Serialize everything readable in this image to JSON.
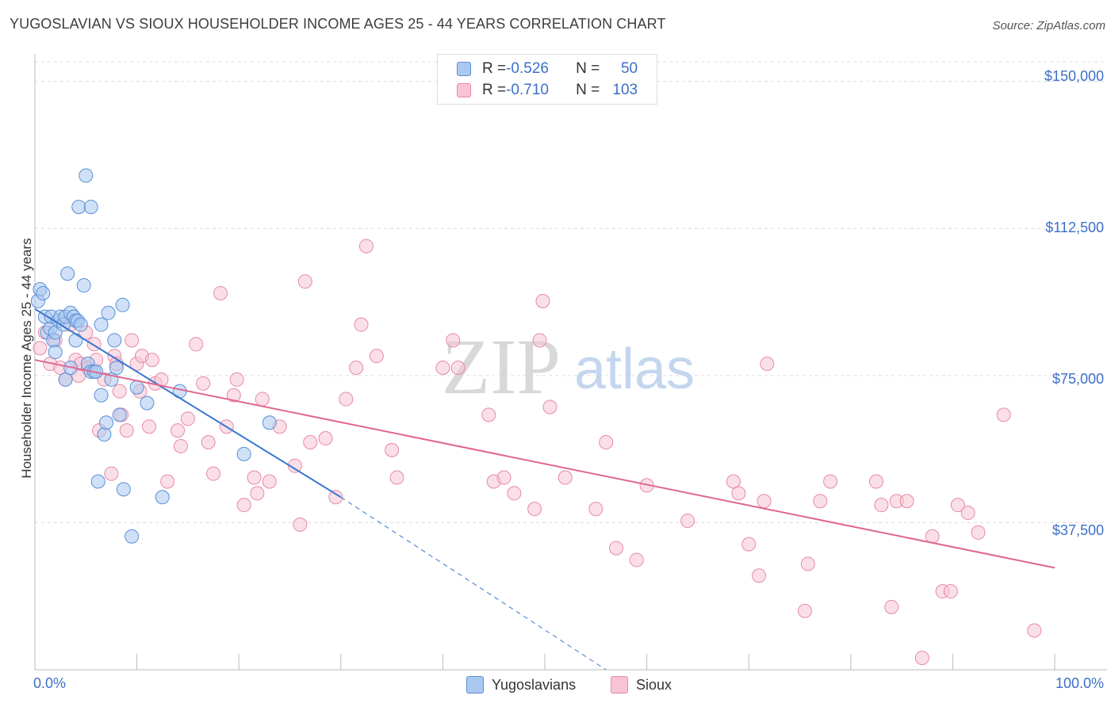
{
  "header": {
    "title": "YUGOSLAVIAN VS SIOUX HOUSEHOLDER INCOME AGES 25 - 44 YEARS CORRELATION CHART",
    "source": "Source: ZipAtlas.com"
  },
  "watermark": {
    "zip": "ZIP",
    "atlas": "atlas"
  },
  "legend": {
    "rows": [
      {
        "r_label": "R = ",
        "r_value": "-0.526",
        "n_label": "N = ",
        "n_value": "50",
        "color": "#aac8f0",
        "stroke": "#5a8fd8"
      },
      {
        "r_label": "R = ",
        "r_value": "-0.710",
        "n_label": "N = ",
        "n_value": "103",
        "color": "#f8c4d4",
        "stroke": "#e68aa8"
      }
    ]
  },
  "bottom_legend": [
    "Yugoslavians",
    "Sioux"
  ],
  "chart_data": {
    "type": "scatter",
    "title": "YUGOSLAVIAN VS SIOUX HOUSEHOLDER INCOME AGES 25 - 44 YEARS CORRELATION CHART",
    "xlabel": "",
    "ylabel": "Householder Income Ages 25 - 44 years",
    "xlim": [
      0,
      100
    ],
    "ylim": [
      0,
      155000
    ],
    "x_tick_labels": [
      "0.0%",
      "100.0%"
    ],
    "y_ticks": [
      37500,
      75000,
      112500,
      150000
    ],
    "y_tick_labels": [
      "$37,500",
      "$75,000",
      "$112,500",
      "$150,000"
    ],
    "grid": true,
    "series": [
      {
        "name": "Yugoslavians",
        "color": "#aac8f0",
        "stroke": "#5a8fd8",
        "trend": {
          "x0": 0,
          "y0": 92000,
          "x1": 30,
          "y1": 44000,
          "dash_to_x": 56,
          "dash_to_y": 0
        },
        "points": [
          [
            0.3,
            94000
          ],
          [
            0.5,
            97000
          ],
          [
            0.8,
            96000
          ],
          [
            1.0,
            90000
          ],
          [
            1.2,
            86000
          ],
          [
            1.5,
            87000
          ],
          [
            1.6,
            90000
          ],
          [
            1.8,
            84000
          ],
          [
            2.0,
            86000
          ],
          [
            2.0,
            81000
          ],
          [
            2.3,
            89000
          ],
          [
            2.5,
            90000
          ],
          [
            2.8,
            88000
          ],
          [
            3.0,
            74000
          ],
          [
            3.0,
            90000
          ],
          [
            3.2,
            101000
          ],
          [
            3.5,
            91000
          ],
          [
            3.5,
            77000
          ],
          [
            3.8,
            90000
          ],
          [
            4.0,
            84000
          ],
          [
            4.0,
            89000
          ],
          [
            4.2,
            89000
          ],
          [
            4.5,
            88000
          ],
          [
            4.8,
            98000
          ],
          [
            4.3,
            118000
          ],
          [
            5.0,
            126000
          ],
          [
            5.5,
            118000
          ],
          [
            5.2,
            78000
          ],
          [
            5.5,
            76000
          ],
          [
            5.8,
            76000
          ],
          [
            6.0,
            76000
          ],
          [
            6.2,
            48000
          ],
          [
            6.5,
            70000
          ],
          [
            6.5,
            88000
          ],
          [
            6.8,
            60000
          ],
          [
            7.0,
            63000
          ],
          [
            7.2,
            91000
          ],
          [
            7.5,
            74000
          ],
          [
            7.8,
            84000
          ],
          [
            8.0,
            77000
          ],
          [
            8.3,
            65000
          ],
          [
            8.6,
            93000
          ],
          [
            8.7,
            46000
          ],
          [
            9.5,
            34000
          ],
          [
            10.0,
            72000
          ],
          [
            11.0,
            68000
          ],
          [
            12.5,
            44000
          ],
          [
            14.2,
            71000
          ],
          [
            20.5,
            55000
          ],
          [
            23.0,
            63000
          ]
        ]
      },
      {
        "name": "Sioux",
        "color": "#f8c4d4",
        "stroke": "#e68aa8",
        "trend": {
          "x0": 0,
          "y0": 79000,
          "x1": 100,
          "y1": 26000
        },
        "points": [
          [
            0.5,
            82000
          ],
          [
            1.0,
            86000
          ],
          [
            1.5,
            78000
          ],
          [
            2.0,
            84000
          ],
          [
            2.5,
            77000
          ],
          [
            3.0,
            74000
          ],
          [
            3.5,
            88000
          ],
          [
            4.0,
            79000
          ],
          [
            4.3,
            75000
          ],
          [
            4.5,
            78000
          ],
          [
            5.0,
            86000
          ],
          [
            5.2,
            77000
          ],
          [
            5.8,
            83000
          ],
          [
            6.0,
            79000
          ],
          [
            6.3,
            61000
          ],
          [
            6.8,
            74000
          ],
          [
            7.5,
            50000
          ],
          [
            7.8,
            80000
          ],
          [
            8.0,
            78000
          ],
          [
            8.3,
            71000
          ],
          [
            8.5,
            65000
          ],
          [
            9.0,
            61000
          ],
          [
            9.5,
            84000
          ],
          [
            10.0,
            78000
          ],
          [
            10.3,
            71000
          ],
          [
            10.5,
            80000
          ],
          [
            11.2,
            62000
          ],
          [
            11.5,
            79000
          ],
          [
            11.8,
            73000
          ],
          [
            12.4,
            74000
          ],
          [
            13.0,
            48000
          ],
          [
            14.0,
            61000
          ],
          [
            14.3,
            57000
          ],
          [
            15.0,
            64000
          ],
          [
            15.8,
            83000
          ],
          [
            16.5,
            73000
          ],
          [
            17.0,
            58000
          ],
          [
            17.5,
            50000
          ],
          [
            18.2,
            96000
          ],
          [
            18.8,
            62000
          ],
          [
            19.5,
            70000
          ],
          [
            19.8,
            74000
          ],
          [
            20.5,
            42000
          ],
          [
            21.5,
            49000
          ],
          [
            21.8,
            45000
          ],
          [
            22.3,
            69000
          ],
          [
            23.0,
            48000
          ],
          [
            24.0,
            62000
          ],
          [
            25.5,
            52000
          ],
          [
            26.0,
            37000
          ],
          [
            26.5,
            99000
          ],
          [
            27.0,
            58000
          ],
          [
            28.5,
            59000
          ],
          [
            29.5,
            44000
          ],
          [
            30.5,
            69000
          ],
          [
            31.5,
            77000
          ],
          [
            32.0,
            88000
          ],
          [
            32.5,
            108000
          ],
          [
            33.5,
            80000
          ],
          [
            35.0,
            56000
          ],
          [
            35.5,
            49000
          ],
          [
            40.0,
            77000
          ],
          [
            41.0,
            84000
          ],
          [
            41.5,
            77000
          ],
          [
            44.5,
            65000
          ],
          [
            45.0,
            48000
          ],
          [
            46.0,
            49000
          ],
          [
            47.0,
            45000
          ],
          [
            49.0,
            41000
          ],
          [
            49.5,
            84000
          ],
          [
            49.8,
            94000
          ],
          [
            50.5,
            67000
          ],
          [
            52.0,
            49000
          ],
          [
            55.0,
            41000
          ],
          [
            56.0,
            58000
          ],
          [
            57.0,
            31000
          ],
          [
            59.0,
            28000
          ],
          [
            60.0,
            47000
          ],
          [
            64.0,
            38000
          ],
          [
            68.5,
            48000
          ],
          [
            69.0,
            45000
          ],
          [
            70.0,
            32000
          ],
          [
            71.0,
            24000
          ],
          [
            71.5,
            43000
          ],
          [
            71.8,
            78000
          ],
          [
            75.5,
            15000
          ],
          [
            75.8,
            27000
          ],
          [
            77.0,
            43000
          ],
          [
            78.0,
            48000
          ],
          [
            82.5,
            48000
          ],
          [
            83.0,
            42000
          ],
          [
            84.0,
            16000
          ],
          [
            84.5,
            43000
          ],
          [
            85.5,
            43000
          ],
          [
            87.0,
            3000
          ],
          [
            88.0,
            34000
          ],
          [
            89.0,
            20000
          ],
          [
            89.8,
            20000
          ],
          [
            90.5,
            42000
          ],
          [
            91.5,
            40000
          ],
          [
            92.5,
            35000
          ],
          [
            95.0,
            65000
          ],
          [
            98.0,
            10000
          ]
        ]
      }
    ]
  }
}
